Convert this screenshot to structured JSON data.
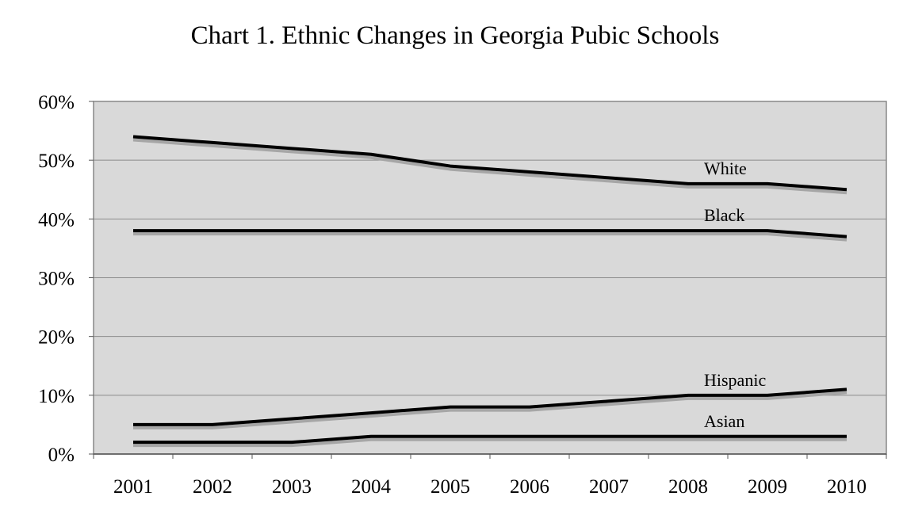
{
  "chart_data": {
    "type": "line",
    "title": "Chart 1.  Ethnic Changes in Georgia Pubic Schools",
    "xlabel": "",
    "ylabel": "",
    "x": [
      "2001",
      "2002",
      "2003",
      "2004",
      "2005",
      "2006",
      "2007",
      "2008",
      "2009",
      "2010"
    ],
    "ylim": [
      0,
      60
    ],
    "y_tick_labels": [
      "0%",
      "10%",
      "20%",
      "30%",
      "40%",
      "50%",
      "60%"
    ],
    "grid": true,
    "legend": "inline labels near the right end of each line",
    "colors": {
      "plot_background": "#d9d9d9",
      "line": "#000000",
      "line_shadow": "#a6a6a6",
      "gridline": "#8c8c8c"
    },
    "series": [
      {
        "name": "White",
        "values": [
          54,
          53,
          52,
          51,
          49,
          48,
          47,
          46,
          46,
          45
        ]
      },
      {
        "name": "Black",
        "values": [
          38,
          38,
          38,
          38,
          38,
          38,
          38,
          38,
          38,
          37
        ]
      },
      {
        "name": "Hispanic",
        "values": [
          5,
          5,
          6,
          7,
          8,
          8,
          9,
          10,
          10,
          11
        ]
      },
      {
        "name": "Asian",
        "values": [
          2,
          2,
          2,
          3,
          3,
          3,
          3,
          3,
          3,
          3
        ]
      }
    ]
  }
}
